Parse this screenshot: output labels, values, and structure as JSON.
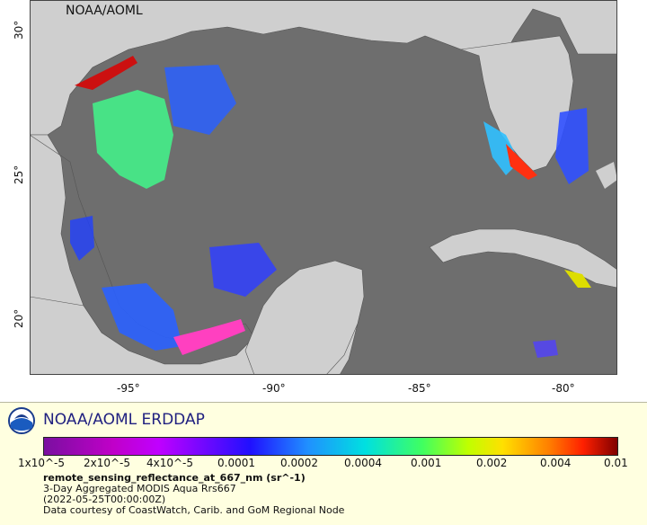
{
  "watermark": "NOAA/AOML",
  "map": {
    "land_color": "#cfcfcf",
    "water_color": "#6e6e6e",
    "y_ticks": [
      "30°",
      "25°",
      "20°"
    ],
    "x_ticks": [
      "-95°",
      "-90°",
      "-85°",
      "-80°"
    ]
  },
  "legend": {
    "brand": "NOAA/AOML ERDDAP",
    "logo_icon": "noaa-logo-icon",
    "colorbar_ticks": [
      "1x10^-5",
      "2x10^-5",
      "4x10^-5",
      "0.0001",
      "0.0002",
      "0.0004",
      "0.001",
      "0.002",
      "0.004",
      "0.01"
    ],
    "variable": "remote_sensing_reflectance_at_667_nm (sr^-1)",
    "dataset": "3-Day Aggregated MODIS Aqua Rrs667",
    "time": "(2022-05-25T00:00:00Z)",
    "credit": "Data courtesy of CoastWatch, Carib. and GoM Regional Node"
  }
}
